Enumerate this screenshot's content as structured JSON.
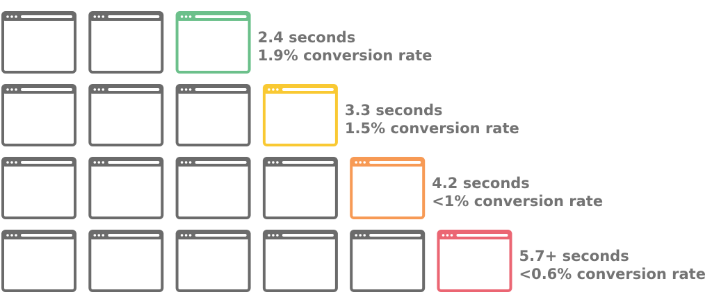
{
  "rows": [
    {
      "lines": [
        "2.4 seconds",
        "1.9% conversion rate"
      ],
      "color": "#6cc08b"
    },
    {
      "lines": [
        "3.3 seconds",
        "1.5% conversion rate"
      ],
      "color": "#f9c933"
    },
    {
      "lines": [
        "4.2 seconds",
        "<1% conversion rate"
      ],
      "color": "#f79a55"
    },
    {
      "lines": [
        "5.7+ seconds",
        "<0.6% conversion rate"
      ],
      "color": "#eb6673"
    }
  ]
}
